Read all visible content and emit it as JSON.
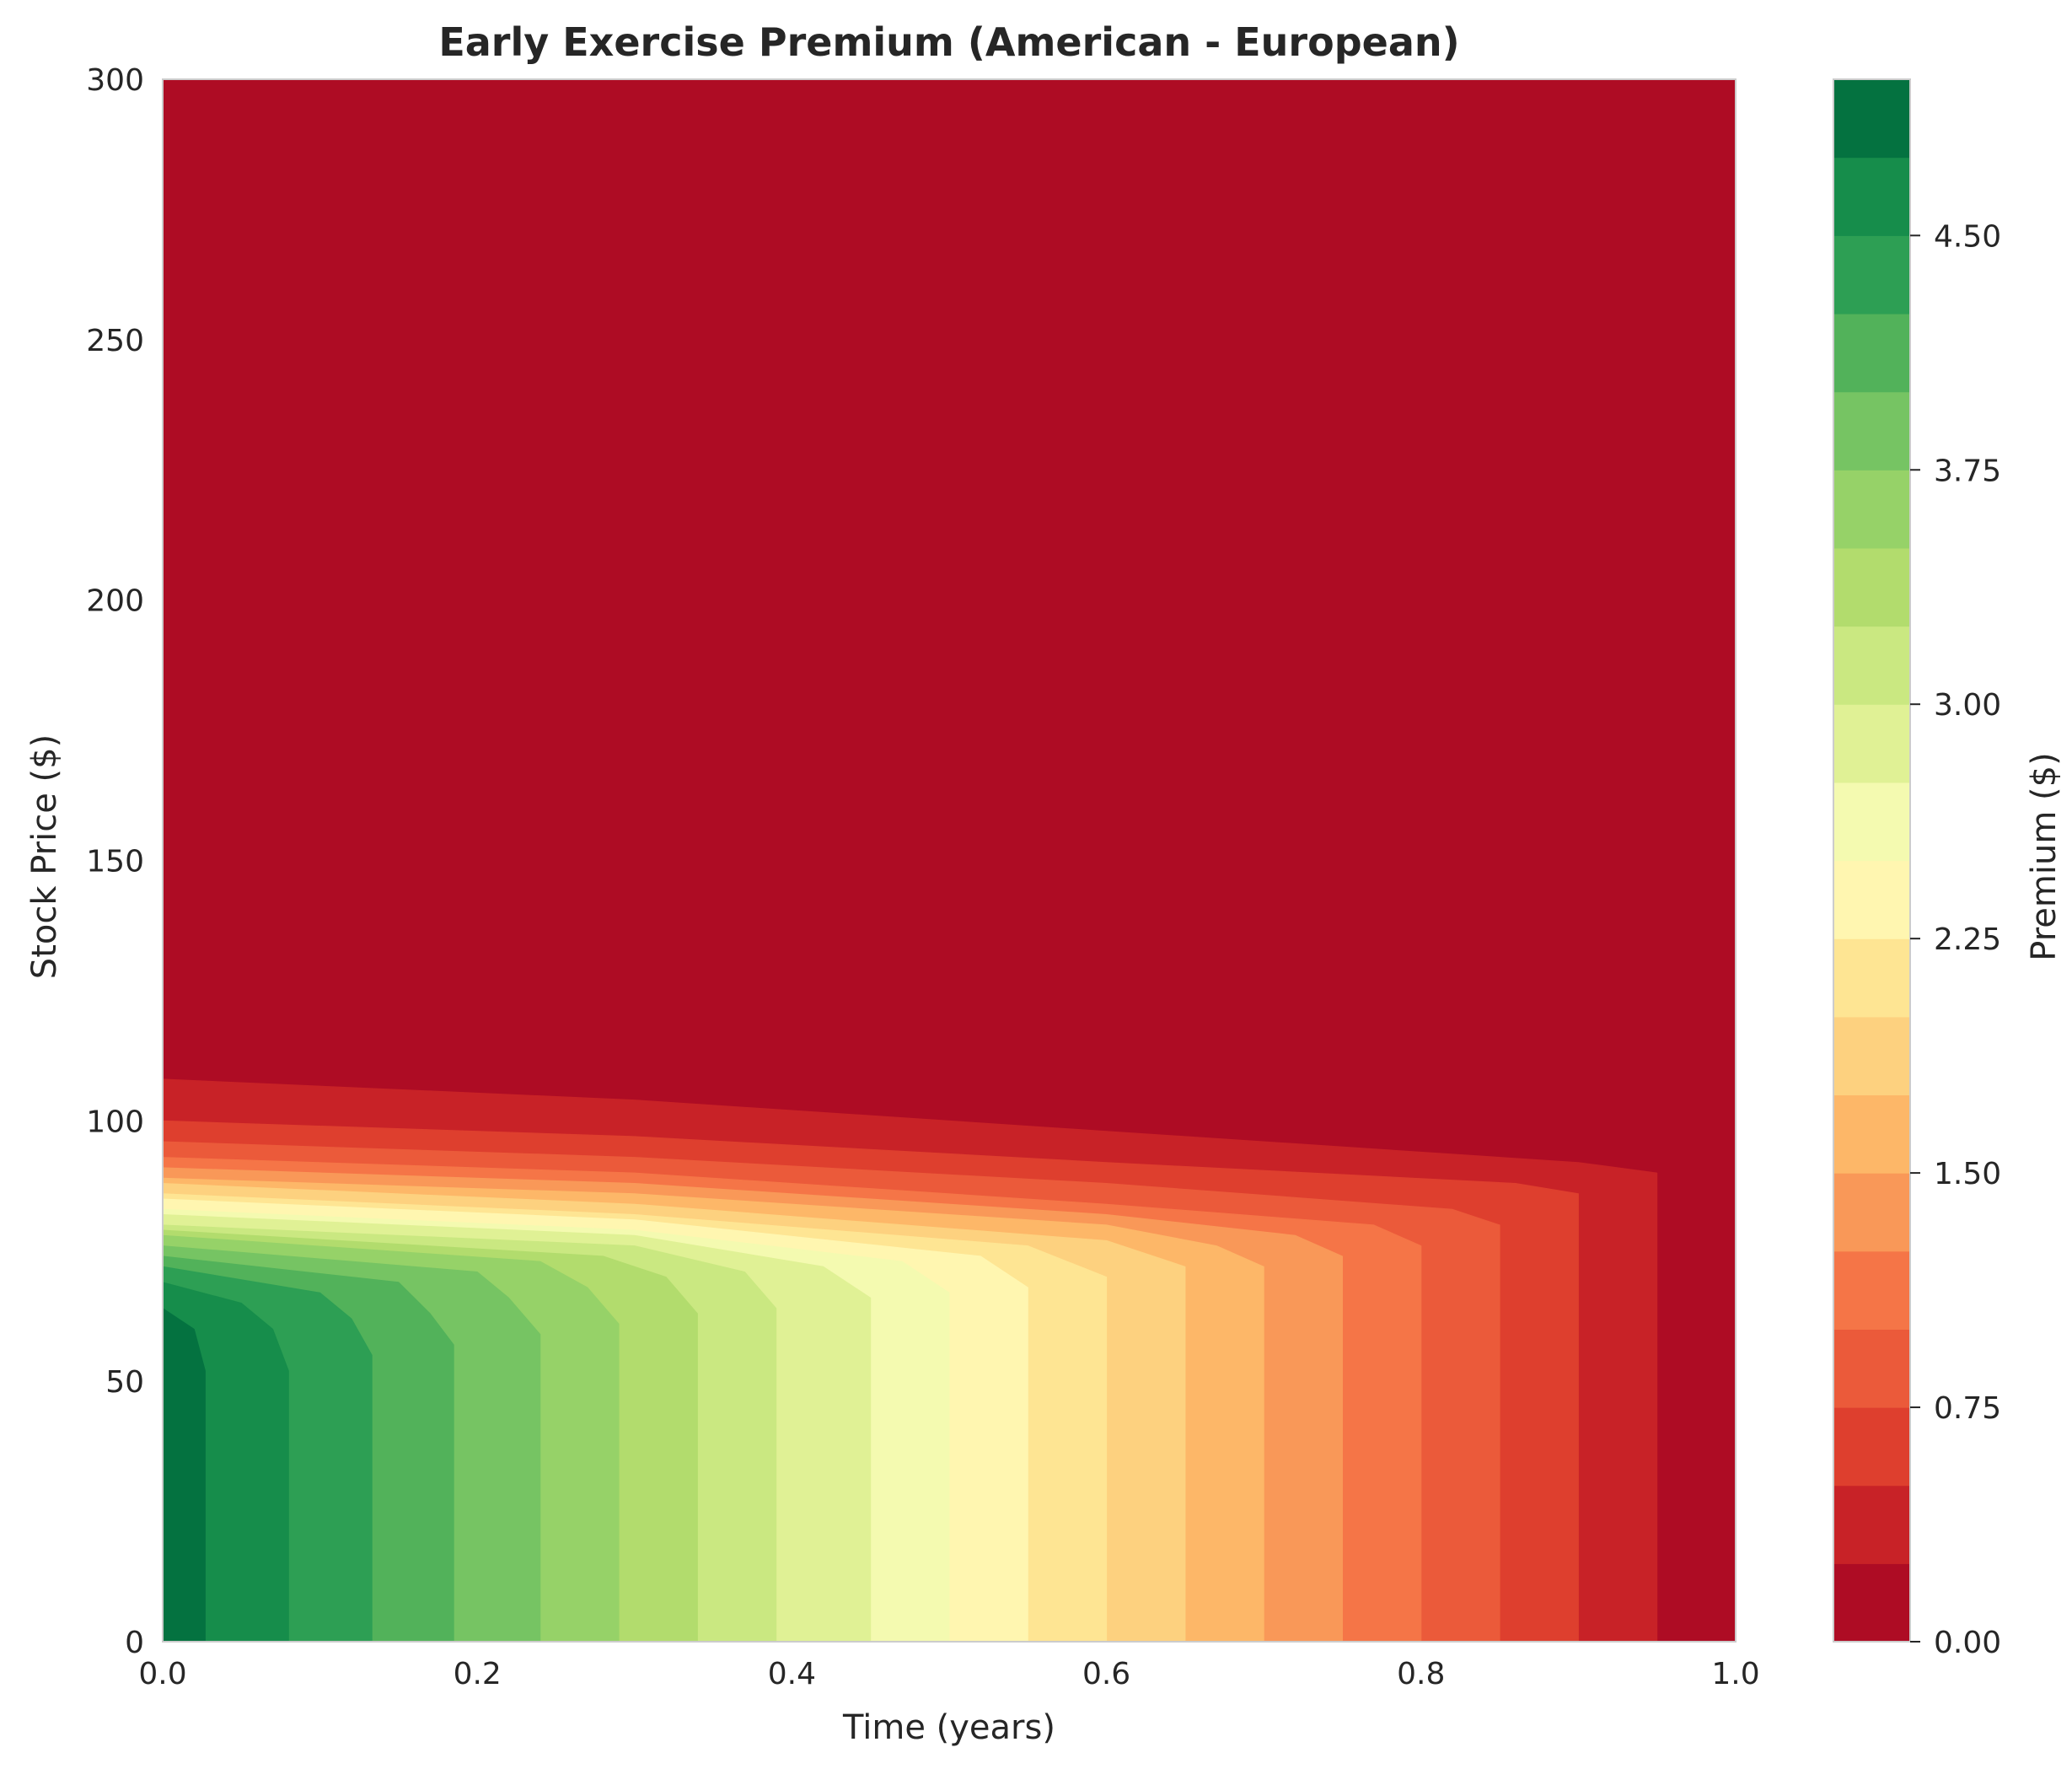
{
  "chart_data": {
    "type": "heatmap",
    "subtype": "filled-contour",
    "title": "Early Exercise Premium (American - European)",
    "xlabel": "Time (years)",
    "ylabel": "Stock Price ($)",
    "xlim": [
      0.0,
      1.0
    ],
    "ylim": [
      0,
      300
    ],
    "x_ticks": [
      "0.0",
      "0.2",
      "0.4",
      "0.6",
      "0.8",
      "1.0"
    ],
    "y_ticks": [
      "0",
      "50",
      "100",
      "150",
      "200",
      "250",
      "300"
    ],
    "grid": false,
    "colorbar": {
      "label": "Premium ($)",
      "range": [
        0.0,
        5.0
      ],
      "ticks": [
        "0.00",
        "0.75",
        "1.50",
        "2.25",
        "3.00",
        "3.75",
        "4.50"
      ],
      "tick_values": [
        0.0,
        0.75,
        1.5,
        2.25,
        3.0,
        3.75,
        4.5
      ],
      "levels": [
        0.0,
        0.25,
        0.5,
        0.75,
        1.0,
        1.25,
        1.5,
        1.75,
        2.0,
        2.25,
        2.5,
        2.75,
        3.0,
        3.25,
        3.5,
        3.75,
        4.0,
        4.25,
        4.5,
        4.75,
        5.0
      ],
      "colors": [
        "#ae0c24",
        "#c82227",
        "#de3f2e",
        "#eb5a3a",
        "#f57547",
        "#f99858",
        "#fdb768",
        "#fdd17f",
        "#fee593",
        "#fff6b0",
        "#f4fab0",
        "#e0f195",
        "#cae881",
        "#b2dc6d",
        "#96d268",
        "#76c463",
        "#52b25a",
        "#2d9f54",
        "#168d4b",
        "#047240"
      ],
      "colormap": "RdYlGn"
    },
    "contour_boundaries": [
      {
        "level": 0.25,
        "points": [
          [
            0.0,
            108
          ],
          [
            0.3,
            104
          ],
          [
            0.6,
            98
          ],
          [
            0.9,
            92
          ],
          [
            0.95,
            90
          ],
          [
            0.95,
            0
          ]
        ]
      },
      {
        "level": 0.5,
        "points": [
          [
            0.0,
            100
          ],
          [
            0.3,
            97
          ],
          [
            0.6,
            92
          ],
          [
            0.86,
            88
          ],
          [
            0.9,
            86
          ],
          [
            0.9,
            0
          ]
        ]
      },
      {
        "level": 0.75,
        "points": [
          [
            0.0,
            96
          ],
          [
            0.3,
            93
          ],
          [
            0.6,
            88
          ],
          [
            0.82,
            83
          ],
          [
            0.85,
            80
          ],
          [
            0.85,
            0
          ]
        ]
      },
      {
        "level": 1.0,
        "points": [
          [
            0.0,
            93
          ],
          [
            0.3,
            90
          ],
          [
            0.6,
            84
          ],
          [
            0.77,
            80
          ],
          [
            0.8,
            76
          ],
          [
            0.8,
            0
          ]
        ]
      },
      {
        "level": 1.25,
        "points": [
          [
            0.0,
            91
          ],
          [
            0.3,
            88
          ],
          [
            0.6,
            82
          ],
          [
            0.72,
            78
          ],
          [
            0.75,
            74
          ],
          [
            0.75,
            0
          ]
        ]
      },
      {
        "level": 1.5,
        "points": [
          [
            0.0,
            89
          ],
          [
            0.3,
            86
          ],
          [
            0.6,
            80
          ],
          [
            0.67,
            76
          ],
          [
            0.7,
            72
          ],
          [
            0.7,
            0
          ]
        ]
      },
      {
        "level": 1.75,
        "points": [
          [
            0.0,
            88
          ],
          [
            0.3,
            84
          ],
          [
            0.6,
            77
          ],
          [
            0.65,
            72
          ],
          [
            0.65,
            0
          ]
        ]
      },
      {
        "level": 2.0,
        "points": [
          [
            0.0,
            86
          ],
          [
            0.3,
            82
          ],
          [
            0.55,
            76
          ],
          [
            0.6,
            70
          ],
          [
            0.6,
            0
          ]
        ]
      },
      {
        "level": 2.25,
        "points": [
          [
            0.0,
            85
          ],
          [
            0.3,
            81
          ],
          [
            0.52,
            74
          ],
          [
            0.55,
            68
          ],
          [
            0.55,
            0
          ]
        ]
      },
      {
        "level": 2.5,
        "points": [
          [
            0.0,
            83
          ],
          [
            0.3,
            79
          ],
          [
            0.47,
            73
          ],
          [
            0.5,
            67
          ],
          [
            0.5,
            0
          ]
        ]
      },
      {
        "level": 2.75,
        "points": [
          [
            0.0,
            82
          ],
          [
            0.3,
            78
          ],
          [
            0.42,
            72
          ],
          [
            0.45,
            66
          ],
          [
            0.45,
            0
          ]
        ]
      },
      {
        "level": 3.0,
        "points": [
          [
            0.0,
            80
          ],
          [
            0.3,
            76
          ],
          [
            0.37,
            71
          ],
          [
            0.39,
            64
          ],
          [
            0.39,
            0
          ]
        ]
      },
      {
        "level": 3.25,
        "points": [
          [
            0.0,
            79
          ],
          [
            0.28,
            74
          ],
          [
            0.32,
            70
          ],
          [
            0.34,
            63
          ],
          [
            0.34,
            0
          ]
        ]
      },
      {
        "level": 3.5,
        "points": [
          [
            0.0,
            78
          ],
          [
            0.24,
            73
          ],
          [
            0.27,
            68
          ],
          [
            0.29,
            61
          ],
          [
            0.29,
            0
          ]
        ]
      },
      {
        "level": 3.75,
        "points": [
          [
            0.0,
            76
          ],
          [
            0.2,
            71
          ],
          [
            0.22,
            66
          ],
          [
            0.24,
            59
          ],
          [
            0.24,
            0
          ]
        ]
      },
      {
        "level": 4.0,
        "points": [
          [
            0.0,
            74
          ],
          [
            0.15,
            69
          ],
          [
            0.17,
            63
          ],
          [
            0.185,
            57
          ],
          [
            0.185,
            0
          ]
        ]
      },
      {
        "level": 4.25,
        "points": [
          [
            0.0,
            72
          ],
          [
            0.1,
            67
          ],
          [
            0.12,
            62
          ],
          [
            0.133,
            55
          ],
          [
            0.133,
            0
          ]
        ]
      },
      {
        "level": 4.5,
        "points": [
          [
            0.0,
            69
          ],
          [
            0.05,
            65
          ],
          [
            0.07,
            60
          ],
          [
            0.08,
            52
          ],
          [
            0.08,
            0
          ]
        ]
      },
      {
        "level": 4.75,
        "points": [
          [
            0.0,
            64
          ],
          [
            0.02,
            60
          ],
          [
            0.027,
            52
          ],
          [
            0.027,
            0
          ]
        ]
      }
    ]
  }
}
